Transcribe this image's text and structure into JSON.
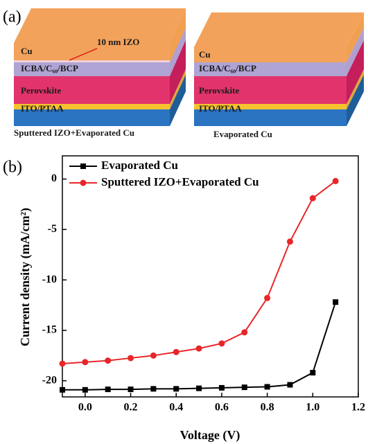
{
  "panel_a": {
    "label": "(a)",
    "left_stack": {
      "top": "Cu",
      "izo": "10 nm IZO",
      "etl": "ICBA/C₆₀/BCP",
      "absorber": "Perovskite",
      "htl": "ITO/PTAA",
      "caption": "Sputtered IZO+Evaporated Cu"
    },
    "right_stack": {
      "top": "Cu",
      "etl": "ICBA/C₆₀/BCP",
      "absorber": "Perovskite",
      "htl": "ITO/PTAA",
      "caption": "Evaporated Cu"
    }
  },
  "chart_data": {
    "type": "line",
    "panel_label": "(b)",
    "x_label": "Voltage (V)",
    "y_label": "Current density (mA/cm²)",
    "x": [
      -0.1,
      0.0,
      0.1,
      0.2,
      0.3,
      0.4,
      0.5,
      0.6,
      0.7,
      0.8,
      0.9,
      1.0,
      1.1
    ],
    "series": [
      {
        "name": "Evaporated Cu",
        "color": "#000000",
        "marker": "square",
        "values": [
          -20.9,
          -20.9,
          -20.85,
          -20.85,
          -20.8,
          -20.8,
          -20.75,
          -20.7,
          -20.65,
          -20.6,
          -20.4,
          -19.2,
          -12.2
        ]
      },
      {
        "name": "Sputtered IZO+Evaporated Cu",
        "color": "#e8262a",
        "marker": "circle",
        "values": [
          -18.3,
          -18.15,
          -18.0,
          -17.75,
          -17.5,
          -17.15,
          -16.8,
          -16.3,
          -15.2,
          -11.8,
          -6.2,
          -1.9,
          -0.2
        ]
      }
    ],
    "xlim": [
      -0.1,
      1.2
    ],
    "ylim": [
      -21.6,
      2.3
    ],
    "xticks": [
      {
        "value": 0,
        "label": "0.0"
      },
      0.2,
      0.4,
      0.6,
      0.8,
      {
        "value": 1,
        "label": "1.0"
      },
      1.2
    ],
    "yticks": [
      0,
      -5,
      -10,
      -15,
      -20
    ],
    "legend": "upper left",
    "grid": false
  }
}
